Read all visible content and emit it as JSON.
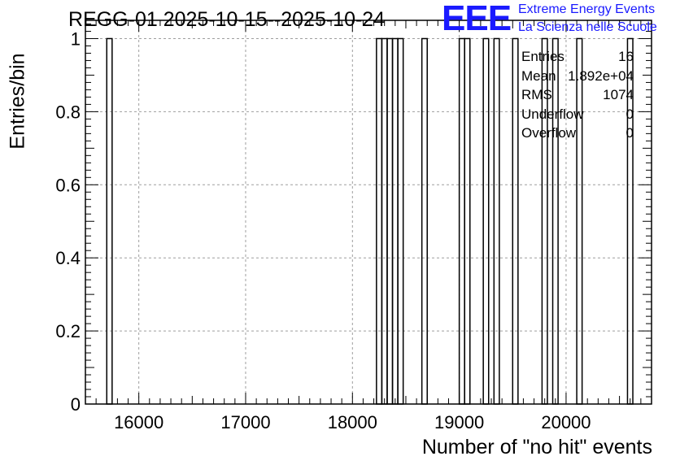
{
  "chart_data": {
    "type": "bar",
    "title": "REGG-01 2025-10-15--2025-10-24",
    "xlabel": "Number of \"no hit\" events",
    "ylabel": "Entries/bin",
    "xlim": [
      15500,
      20800
    ],
    "ylim": [
      0,
      1.05
    ],
    "bin_width": 50,
    "grid": true,
    "x_ticks": [
      16000,
      17000,
      18000,
      19000,
      20000
    ],
    "x_tick_labels": [
      "16000",
      "17000",
      "18000",
      "19000",
      "20000"
    ],
    "y_ticks": [
      0,
      0.2,
      0.4,
      0.6,
      0.8,
      1
    ],
    "y_tick_labels": [
      "0",
      "0.2",
      "0.4",
      "0.6",
      "0.8",
      "1"
    ],
    "bins": [
      {
        "x": 15700,
        "value": 1
      },
      {
        "x": 18225,
        "value": 1
      },
      {
        "x": 18275,
        "value": 1
      },
      {
        "x": 18325,
        "value": 1
      },
      {
        "x": 18375,
        "value": 1
      },
      {
        "x": 18425,
        "value": 1
      },
      {
        "x": 18650,
        "value": 1
      },
      {
        "x": 19000,
        "value": 1
      },
      {
        "x": 19050,
        "value": 1
      },
      {
        "x": 19225,
        "value": 1
      },
      {
        "x": 19325,
        "value": 1
      },
      {
        "x": 19500,
        "value": 1
      },
      {
        "x": 19775,
        "value": 1
      },
      {
        "x": 19875,
        "value": 1
      },
      {
        "x": 20100,
        "value": 1
      },
      {
        "x": 20575,
        "value": 1
      }
    ]
  },
  "logo": {
    "letters": "EEE",
    "line1": "Extreme Energy Events",
    "line2": "La Scienza nelle Scuole"
  },
  "stats": {
    "entries_label": "Entries",
    "entries_value": "16",
    "mean_label": "Mean",
    "mean_value": "1.892e+04",
    "rms_label": "RMS",
    "rms_value": "1074",
    "underflow_label": "Underflow",
    "underflow_value": "0",
    "overflow_label": "Overflow",
    "overflow_value": "0"
  },
  "colors": {
    "logo": "#1a1aff",
    "grid": "#9e9e9e",
    "line": "#000000"
  }
}
